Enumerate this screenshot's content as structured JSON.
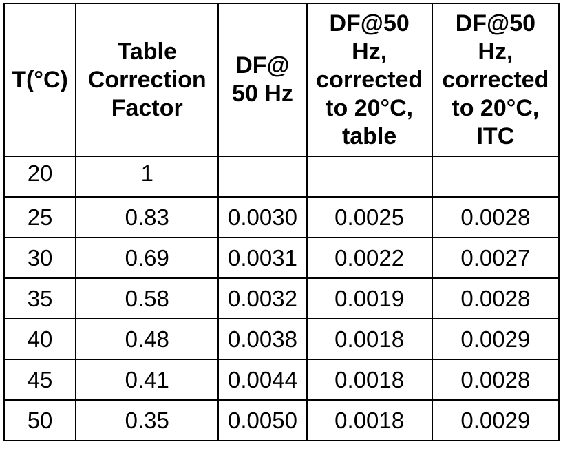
{
  "table": {
    "headers": [
      [
        "T(°C)"
      ],
      [
        "Table",
        "Correction",
        "Factor"
      ],
      [
        "DF@",
        "50 Hz"
      ],
      [
        "DF@50",
        "Hz,",
        "corrected",
        "to 20°C,",
        "table"
      ],
      [
        "DF@50",
        "Hz,",
        "corrected",
        "to 20°C,",
        "ITC"
      ]
    ],
    "rows": [
      [
        "20",
        "1",
        "",
        "",
        ""
      ],
      [
        "25",
        "0.83",
        "0.0030",
        "0.0025",
        "0.0028"
      ],
      [
        "30",
        "0.69",
        "0.0031",
        "0.0022",
        "0.0027"
      ],
      [
        "35",
        "0.58",
        "0.0032",
        "0.0019",
        "0.0028"
      ],
      [
        "40",
        "0.48",
        "0.0038",
        "0.0018",
        "0.0029"
      ],
      [
        "45",
        "0.41",
        "0.0044",
        "0.0018",
        "0.0028"
      ],
      [
        "50",
        "0.35",
        "0.0050",
        "0.0018",
        "0.0029"
      ]
    ]
  }
}
